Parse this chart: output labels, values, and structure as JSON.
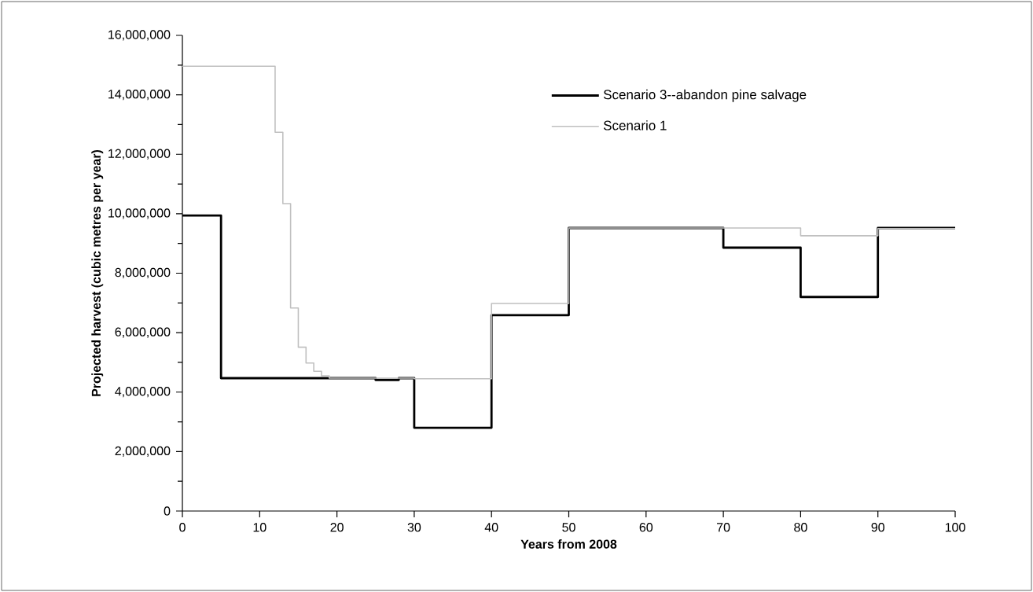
{
  "chart_data": {
    "type": "step",
    "xlabel": "Years from 2008",
    "ylabel": "Projected harvest (cubic metres per year)",
    "xlim": [
      0,
      100
    ],
    "xticks": [
      0,
      10,
      20,
      30,
      40,
      50,
      60,
      70,
      80,
      90,
      100
    ],
    "ylim": [
      0,
      16000000
    ],
    "yticks": [
      {
        "value": 0,
        "label": "0"
      },
      {
        "value": 2000000,
        "label": "2,000,000"
      },
      {
        "value": 4000000,
        "label": "4,000,000"
      },
      {
        "value": 6000000,
        "label": "6,000,000"
      },
      {
        "value": 8000000,
        "label": "8,000,000"
      },
      {
        "value": 10000000,
        "label": "10,000,000"
      },
      {
        "value": 12000000,
        "label": "12,000,000"
      },
      {
        "value": 14000000,
        "label": "14,000,000"
      },
      {
        "value": 16000000,
        "label": "16,000,000"
      }
    ],
    "grid": false,
    "legend": "top right",
    "series": [
      {
        "name": "Scenario 3--abandon pine salvage",
        "color": "#000000",
        "x": [
          0,
          5,
          25,
          28,
          30,
          40,
          50,
          70,
          80,
          90,
          100
        ],
        "values": [
          9940000,
          4470000,
          4410000,
          4470000,
          2800000,
          6590000,
          9520000,
          8860000,
          7200000,
          9520000,
          9520000
        ]
      },
      {
        "name": "Scenario 1",
        "color": "#c0c0c0",
        "x": [
          0,
          12,
          13,
          14,
          15,
          16,
          17,
          18,
          19,
          30,
          40,
          50,
          80,
          90,
          100
        ],
        "values": [
          14960000,
          12740000,
          10340000,
          6830000,
          5510000,
          4980000,
          4700000,
          4550000,
          4470000,
          4450000,
          6980000,
          9520000,
          9260000,
          9500000,
          9500000
        ]
      }
    ]
  }
}
